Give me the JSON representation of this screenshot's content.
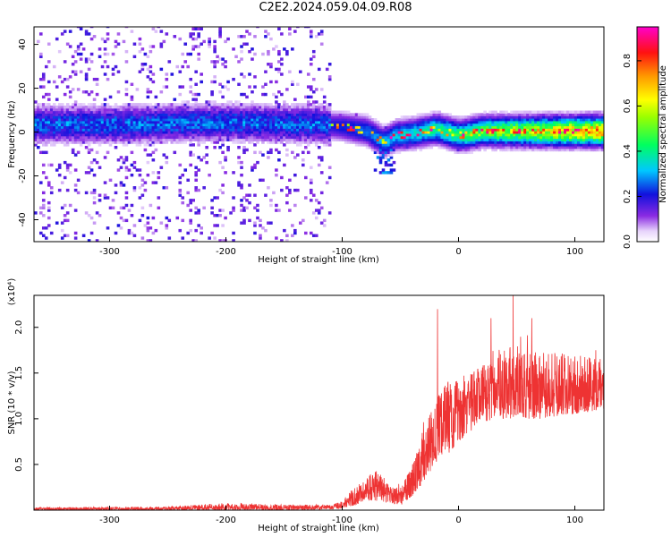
{
  "title": "C2E2.2024.059.04.09.R08",
  "chart_data": [
    {
      "type": "heatmap",
      "xlabel": "Height of straight line (km)",
      "ylabel": "Frequency (Hz)",
      "xlim": [
        -365,
        125
      ],
      "ylim": [
        -50,
        48
      ],
      "xticks": [
        -300,
        -200,
        -100,
        0,
        100
      ],
      "yticks": [
        -40,
        -20,
        0,
        20,
        40
      ],
      "xtick_labels": [
        "-300",
        "-200",
        "-100",
        "0",
        "100"
      ],
      "ytick_labels": [
        "-40",
        "-20",
        "0",
        "20",
        "40"
      ],
      "colorbar": {
        "label": "Normalized spectral amplitude",
        "range": [
          0.0,
          0.95
        ],
        "ticks": [
          0.0,
          0.2,
          0.4,
          0.6,
          0.8
        ],
        "tick_labels": [
          "0.0",
          "0.2",
          "0.4",
          "0.6",
          "0.8"
        ],
        "colormap": "rainbow (white-purple-blue-cyan-green-yellow-orange-red-magenta)"
      },
      "band_center_hz": [
        {
          "x": -360,
          "y": 3
        },
        {
          "x": -300,
          "y": 3
        },
        {
          "x": -200,
          "y": 4
        },
        {
          "x": -120,
          "y": 3
        },
        {
          "x": -100,
          "y": 2
        },
        {
          "x": -80,
          "y": 0
        },
        {
          "x": -65,
          "y": -5
        },
        {
          "x": -55,
          "y": -2
        },
        {
          "x": -40,
          "y": -1
        },
        {
          "x": -20,
          "y": 1
        },
        {
          "x": 0,
          "y": -2
        },
        {
          "x": 20,
          "y": 0
        },
        {
          "x": 60,
          "y": 0
        },
        {
          "x": 100,
          "y": 0
        },
        {
          "x": 125,
          "y": 0
        }
      ],
      "grid": false
    },
    {
      "type": "line",
      "xlabel": "Height of straight line (km)",
      "ylabel": "SNR (10 * v/v)",
      "yscale_label": "(x10⁴)",
      "xlim": [
        -365,
        125
      ],
      "ylim": [
        0,
        2.35
      ],
      "xticks": [
        -300,
        -200,
        -100,
        0,
        100
      ],
      "yticks": [
        0.5,
        1.0,
        1.5,
        2.0
      ],
      "xtick_labels": [
        "-300",
        "-200",
        "-100",
        "0",
        "100"
      ],
      "ytick_labels": [
        "0.5",
        "1.0",
        "1.5",
        "2.0"
      ],
      "series_color": "#ee3333",
      "envelope": [
        {
          "x": -365,
          "lo": 0.0,
          "hi": 0.03
        },
        {
          "x": -250,
          "lo": 0.0,
          "hi": 0.04
        },
        {
          "x": -200,
          "lo": 0.0,
          "hi": 0.08
        },
        {
          "x": -150,
          "lo": 0.0,
          "hi": 0.06
        },
        {
          "x": -110,
          "lo": 0.01,
          "hi": 0.06
        },
        {
          "x": -100,
          "lo": 0.02,
          "hi": 0.1
        },
        {
          "x": -90,
          "lo": 0.05,
          "hi": 0.25
        },
        {
          "x": -80,
          "lo": 0.1,
          "hi": 0.35
        },
        {
          "x": -70,
          "lo": 0.1,
          "hi": 0.45
        },
        {
          "x": -60,
          "lo": 0.08,
          "hi": 0.3
        },
        {
          "x": -50,
          "lo": 0.05,
          "hi": 0.25
        },
        {
          "x": -40,
          "lo": 0.15,
          "hi": 0.5
        },
        {
          "x": -30,
          "lo": 0.3,
          "hi": 0.9
        },
        {
          "x": -20,
          "lo": 0.5,
          "hi": 1.2
        },
        {
          "x": -10,
          "lo": 0.6,
          "hi": 1.4
        },
        {
          "x": 0,
          "lo": 0.75,
          "hi": 1.45
        },
        {
          "x": 10,
          "lo": 0.85,
          "hi": 1.5
        },
        {
          "x": 20,
          "lo": 0.95,
          "hi": 1.6
        },
        {
          "x": 30,
          "lo": 1.0,
          "hi": 1.75
        },
        {
          "x": 50,
          "lo": 1.0,
          "hi": 1.8
        },
        {
          "x": 75,
          "lo": 1.0,
          "hi": 1.75
        },
        {
          "x": 100,
          "lo": 1.05,
          "hi": 1.7
        },
        {
          "x": 125,
          "lo": 1.1,
          "hi": 1.65
        }
      ],
      "peaks": [
        {
          "x": -18,
          "y": 2.2
        },
        {
          "x": 28,
          "y": 2.1
        },
        {
          "x": 47,
          "y": 2.35
        },
        {
          "x": 63,
          "y": 2.1
        },
        {
          "x": 118,
          "y": 1.75
        }
      ],
      "grid": false
    }
  ]
}
